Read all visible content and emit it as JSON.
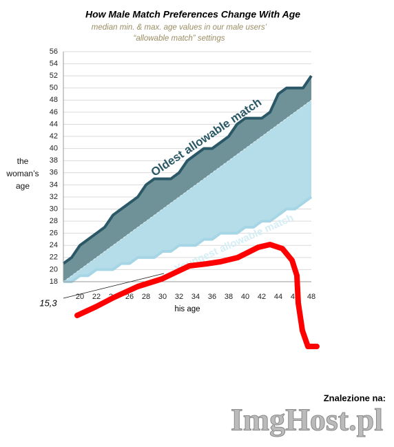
{
  "chart_data": {
    "type": "area_line",
    "title": "How Male Match Preferences Change With Age",
    "subtitle": [
      "median min. & max. age values in our male users’",
      "“allowable match” settings"
    ],
    "x_label": "his age",
    "y_label": "the woman’s age",
    "x": [
      18,
      19,
      20,
      21,
      22,
      23,
      24,
      25,
      26,
      27,
      28,
      29,
      30,
      31,
      32,
      33,
      34,
      35,
      36,
      37,
      38,
      39,
      40,
      41,
      42,
      43,
      44,
      45,
      46,
      47,
      48
    ],
    "series": [
      {
        "name": "Oldest allowable match",
        "color": "#2b5867",
        "fill": "#6f9198",
        "values": [
          21,
          22,
          24,
          25,
          26,
          27,
          29,
          30,
          31,
          32,
          34,
          35,
          35,
          35,
          36,
          38,
          39,
          40,
          40,
          41,
          42,
          44,
          45,
          45,
          45,
          46,
          49,
          50,
          50,
          50,
          52
        ]
      },
      {
        "name": "Youngest allowable match",
        "color": "#a6d6e6",
        "fill": "#b5dde9",
        "values": [
          18,
          18,
          19,
          19,
          20,
          20,
          20,
          21,
          21,
          22,
          22,
          22,
          23,
          23,
          24,
          24,
          24,
          25,
          25,
          26,
          26,
          26,
          27,
          27,
          28,
          28,
          29,
          30,
          30,
          31,
          32
        ]
      }
    ],
    "xlim": [
      18,
      48
    ],
    "xticks": [
      20,
      22,
      24,
      26,
      28,
      30,
      32,
      34,
      36,
      38,
      40,
      42,
      44,
      46,
      48
    ],
    "ylim": [
      18,
      56
    ],
    "yticks": [
      18,
      20,
      22,
      24,
      26,
      28,
      30,
      32,
      34,
      36,
      38,
      40,
      42,
      44,
      46,
      48,
      50,
      52,
      54,
      56
    ],
    "grid": true,
    "annotations": [
      "15,3"
    ],
    "watermark": [
      "Znalezione na:",
      "ImgHost.pl"
    ]
  }
}
